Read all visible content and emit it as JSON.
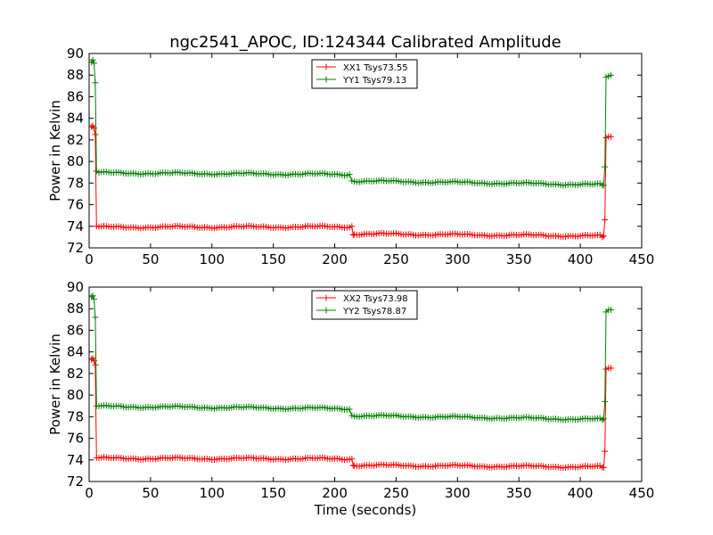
{
  "figure": {
    "title": "ngc2541_APOC, ID:124344 Calibrated Amplitude"
  },
  "chart_data": [
    {
      "type": "line",
      "title": "ngc2541_APOC, ID:124344 Calibrated Amplitude",
      "xlabel": "",
      "ylabel": "Power in Kelvin",
      "xlim": [
        0,
        450
      ],
      "ylim": [
        72,
        90
      ],
      "xticks": [
        "0",
        "50",
        "100",
        "150",
        "200",
        "250",
        "300",
        "350",
        "400",
        "450"
      ],
      "yticks": [
        "72",
        "74",
        "76",
        "78",
        "80",
        "82",
        "84",
        "86",
        "88",
        "90"
      ],
      "legend_position": "upper center",
      "grid": false,
      "marker": "+",
      "series": [
        {
          "name": "XX1 Tsys73.55",
          "color": "#ff0000",
          "points": [
            [
              2,
              83.2
            ],
            [
              3,
              83.3
            ],
            [
              4,
              83.1
            ],
            [
              5,
              82.5
            ],
            [
              6,
              74.0
            ],
            [
              214,
              74.0
            ],
            [
              215,
              73.2
            ],
            [
              418,
              73.0
            ],
            [
              419,
              73.1
            ],
            [
              420,
              74.6
            ],
            [
              421,
              82.2
            ],
            [
              423,
              82.3
            ],
            [
              425,
              82.3
            ]
          ],
          "segments": [
            {
              "from": 8,
              "to": 212,
              "v0": 73.92,
              "v1": 73.95
            },
            {
              "from": 216,
              "to": 417,
              "v0": 73.3,
              "v1": 73.1
            }
          ]
        },
        {
          "name": "YY1 Tsys79.13",
          "color": "#008000",
          "points": [
            [
              2,
              89.2
            ],
            [
              3,
              89.4
            ],
            [
              4,
              89.1
            ],
            [
              5,
              87.3
            ],
            [
              6,
              79.1
            ],
            [
              212,
              78.8
            ],
            [
              214,
              78.2
            ],
            [
              418,
              77.8
            ],
            [
              419,
              77.8
            ],
            [
              420,
              79.5
            ],
            [
              421,
              87.8
            ],
            [
              423,
              87.9
            ],
            [
              425,
              88.0
            ]
          ],
          "segments": [
            {
              "from": 8,
              "to": 210,
              "v0": 78.95,
              "v1": 78.8
            },
            {
              "from": 216,
              "to": 417,
              "v0": 78.2,
              "v1": 77.85
            }
          ]
        }
      ]
    },
    {
      "type": "line",
      "title": "",
      "xlabel": "Time (seconds)",
      "ylabel": "Power in Kelvin",
      "xlim": [
        0,
        450
      ],
      "ylim": [
        72,
        90
      ],
      "xticks": [
        "0",
        "50",
        "100",
        "150",
        "200",
        "250",
        "300",
        "350",
        "400",
        "450"
      ],
      "yticks": [
        "72",
        "74",
        "76",
        "78",
        "80",
        "82",
        "84",
        "86",
        "88",
        "90"
      ],
      "legend_position": "upper center",
      "grid": false,
      "marker": "+",
      "series": [
        {
          "name": "XX2 Tsys73.98",
          "color": "#ff0000",
          "points": [
            [
              2,
              83.3
            ],
            [
              3,
              83.4
            ],
            [
              4,
              83.2
            ],
            [
              5,
              82.8
            ],
            [
              6,
              74.2
            ],
            [
              214,
              74.1
            ],
            [
              215,
              73.5
            ],
            [
              418,
              73.3
            ],
            [
              419,
              73.3
            ],
            [
              420,
              74.8
            ],
            [
              421,
              82.4
            ],
            [
              423,
              82.5
            ],
            [
              425,
              82.5
            ]
          ],
          "segments": [
            {
              "from": 8,
              "to": 212,
              "v0": 74.15,
              "v1": 74.1
            },
            {
              "from": 216,
              "to": 417,
              "v0": 73.5,
              "v1": 73.35
            }
          ]
        },
        {
          "name": "YY2 Tsys78.87",
          "color": "#008000",
          "points": [
            [
              2,
              89.1
            ],
            [
              3,
              89.2
            ],
            [
              4,
              88.9
            ],
            [
              5,
              87.2
            ],
            [
              6,
              79.0
            ],
            [
              212,
              78.7
            ],
            [
              214,
              78.1
            ],
            [
              418,
              77.7
            ],
            [
              419,
              77.8
            ],
            [
              420,
              79.4
            ],
            [
              421,
              87.7
            ],
            [
              423,
              87.9
            ],
            [
              425,
              87.9
            ]
          ],
          "segments": [
            {
              "from": 8,
              "to": 210,
              "v0": 78.95,
              "v1": 78.75
            },
            {
              "from": 216,
              "to": 417,
              "v0": 78.1,
              "v1": 77.75
            }
          ]
        }
      ]
    }
  ]
}
